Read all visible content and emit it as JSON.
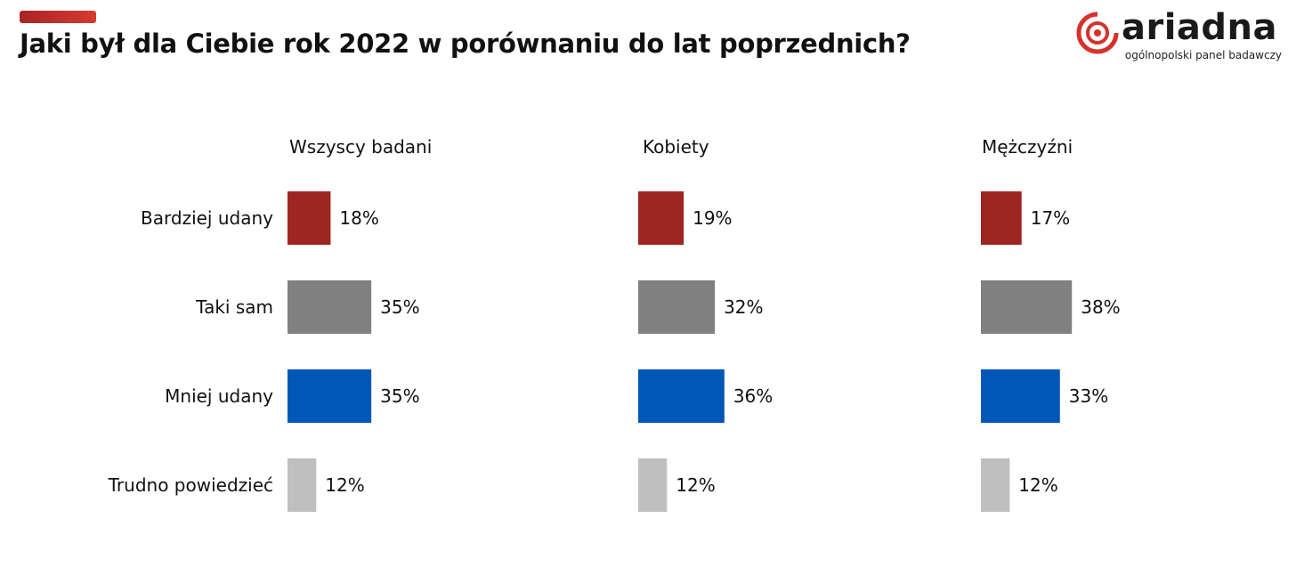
{
  "title": "Jaki był dla Ciebie rok 2022 w porównaniu do lat poprzednich?",
  "logo": {
    "name": "ariadna",
    "tagline": "ogólnopolski panel badawczy"
  },
  "colors": {
    "accent": "#c8302c",
    "Bardziej udany": "#9e2620",
    "Taki sam": "#808080",
    "Mniej udany": "#0057b8",
    "Trudno powiedzieć": "#bfbfbf"
  },
  "chart_data": {
    "type": "bar",
    "orientation": "horizontal",
    "unit": "%",
    "categories": [
      "Bardziej udany",
      "Taki sam",
      "Mniej udany",
      "Trudno powiedzieć"
    ],
    "panels": [
      {
        "title": "Wszyscy badani",
        "values": [
          18,
          35,
          35,
          12
        ]
      },
      {
        "title": "Kobiety",
        "values": [
          19,
          32,
          36,
          12
        ]
      },
      {
        "title": "Mężczyźni",
        "values": [
          17,
          38,
          33,
          12
        ]
      }
    ],
    "grid": false,
    "legend": "none"
  }
}
